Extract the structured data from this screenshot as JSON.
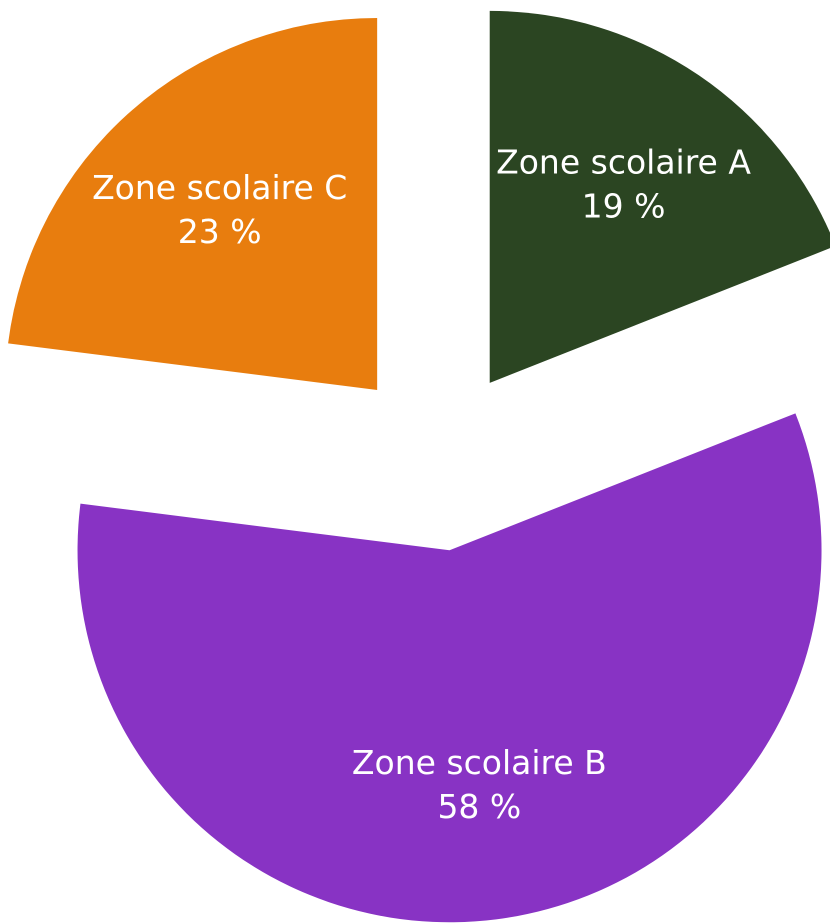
{
  "chart_data": {
    "type": "pie",
    "categories": [
      "Zone scolaire A",
      "Zone scolaire B",
      "Zone scolaire C"
    ],
    "values": [
      19,
      58,
      23
    ],
    "value_labels": [
      "19 %",
      "58 %",
      "23 %"
    ],
    "colors": [
      "#2b4522",
      "#8833c4",
      "#e87d0e"
    ]
  }
}
